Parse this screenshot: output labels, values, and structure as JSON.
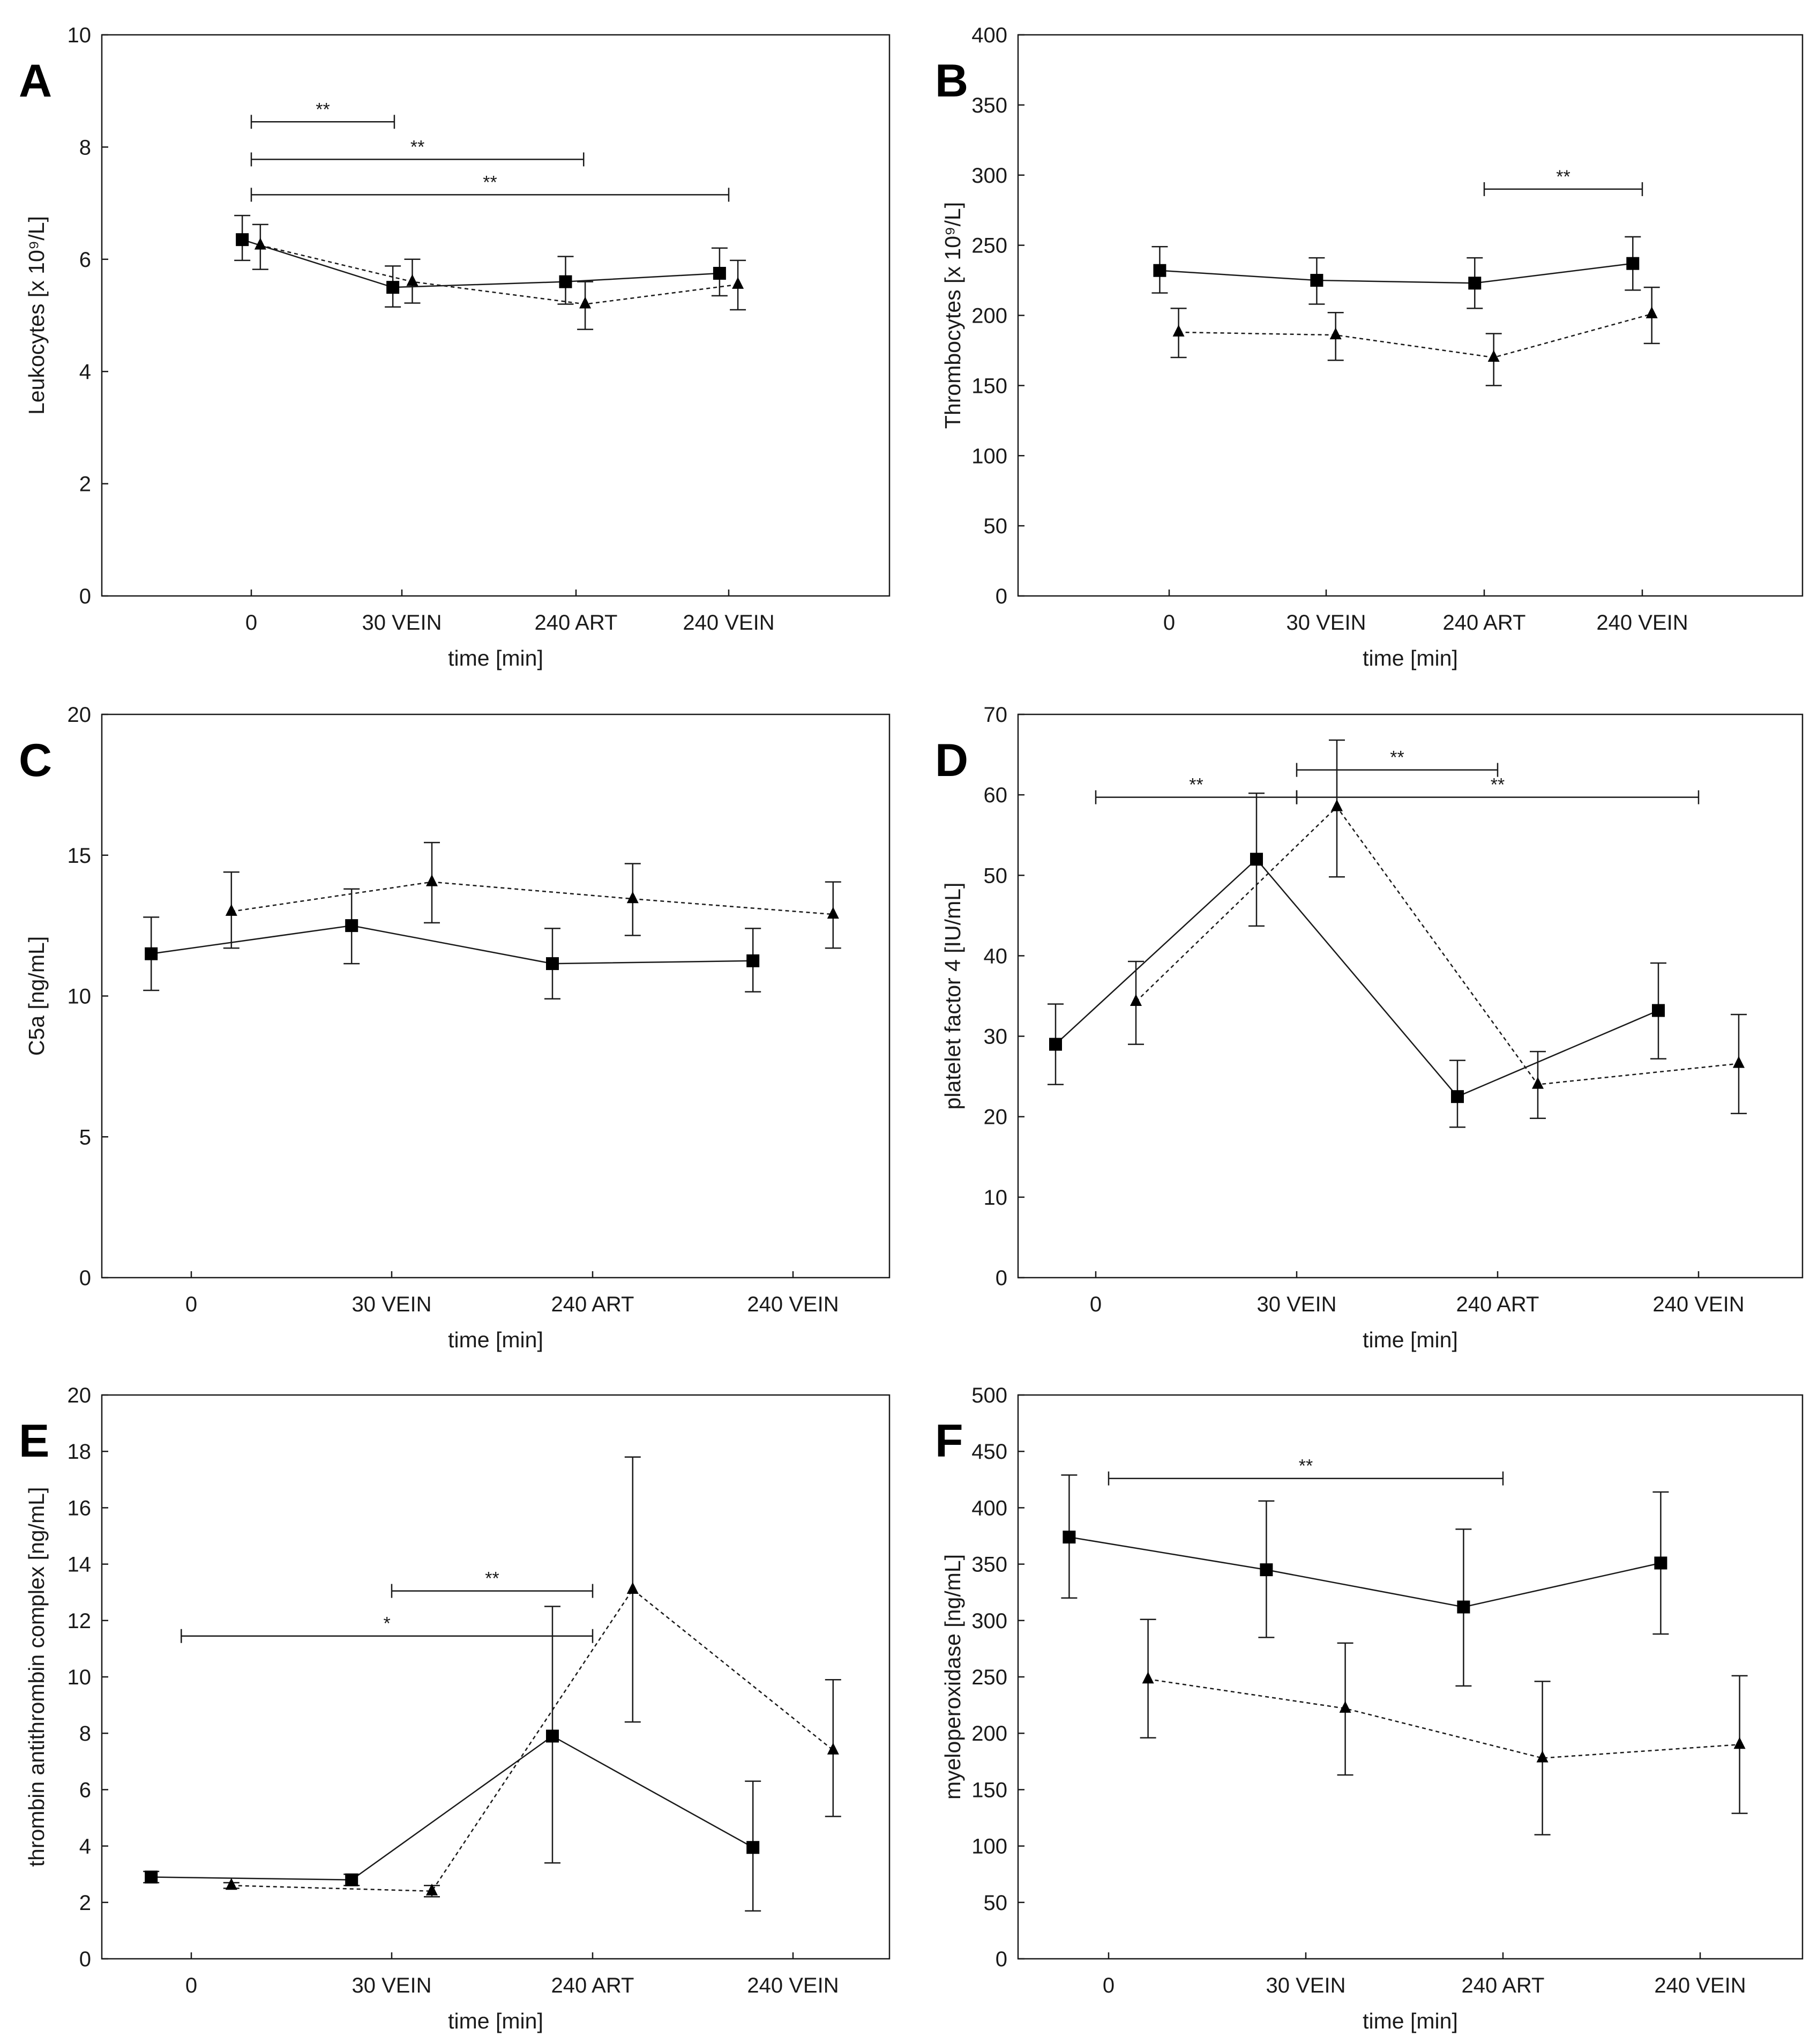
{
  "chart_data": [
    {
      "panel": "A",
      "type": "line",
      "xlabel": "time [min]",
      "ylabel": "Leukocytes [x 10⁹/L]",
      "categories": [
        "0",
        "30 VEIN",
        "240 ART",
        "240 VEIN"
      ],
      "ylim": [
        0,
        10
      ],
      "yticks": [
        "0",
        "2",
        "4",
        "6",
        "8",
        "10"
      ],
      "grid": false,
      "series": [
        {
          "name": "square-series",
          "style": "solid",
          "marker": "square",
          "x": [
            -0.06,
            0.94,
            1.94,
            2.94
          ],
          "values": [
            6.35,
            5.5,
            5.6,
            5.75
          ],
          "err_low": [
            5.98,
            5.15,
            5.2,
            5.35
          ],
          "err_high": [
            6.78,
            5.88,
            6.05,
            6.2
          ]
        },
        {
          "name": "triangle-series",
          "style": "dashed",
          "marker": "triangle",
          "x": [
            0.06,
            1.06,
            2.06,
            3.06
          ],
          "values": [
            6.25,
            5.6,
            5.2,
            5.55
          ],
          "err_low": [
            5.82,
            5.22,
            4.75,
            5.1
          ],
          "err_high": [
            6.62,
            6.0,
            5.6,
            5.98
          ]
        }
      ],
      "significance": [
        {
          "from": 0,
          "to": 0.95,
          "label": "**",
          "y": 8.45
        },
        {
          "from": 0,
          "to": 2.05,
          "label": "**",
          "y": 7.78
        },
        {
          "from": 0,
          "to": 3.0,
          "label": "**",
          "y": 7.15
        }
      ]
    },
    {
      "panel": "B",
      "type": "line",
      "xlabel": "time [min]",
      "ylabel": "Thrombocytes [x 10⁹/L]",
      "categories": [
        "0",
        "30 VEIN",
        "240 ART",
        "240 VEIN"
      ],
      "ylim": [
        0,
        400
      ],
      "yticks": [
        "0",
        "50",
        "100",
        "150",
        "200",
        "250",
        "300",
        "350",
        "400"
      ],
      "grid": false,
      "series": [
        {
          "name": "square-series",
          "style": "solid",
          "marker": "square",
          "x": [
            -0.06,
            0.94,
            1.94,
            2.94
          ],
          "values": [
            232,
            225,
            223,
            237
          ],
          "err_low": [
            216,
            208,
            205,
            218
          ],
          "err_high": [
            249,
            241,
            241,
            256
          ]
        },
        {
          "name": "triangle-series",
          "style": "dashed",
          "marker": "triangle",
          "x": [
            0.06,
            1.06,
            2.06,
            3.06
          ],
          "values": [
            188,
            186,
            170,
            201
          ],
          "err_low": [
            170,
            168,
            150,
            180
          ],
          "err_high": [
            205,
            202,
            187,
            220
          ]
        }
      ],
      "significance": [
        {
          "from": 2.0,
          "to": 3.0,
          "label": "**",
          "y": 290
        }
      ]
    },
    {
      "panel": "C",
      "type": "line",
      "xlabel": "time [min]",
      "ylabel": "C5a [ng/mL]",
      "categories": [
        "0",
        "30 VEIN",
        "240 ART",
        "240 VEIN"
      ],
      "ylim": [
        0,
        20
      ],
      "yticks": [
        "0",
        "5",
        "10",
        "15",
        "20"
      ],
      "grid": false,
      "series": [
        {
          "name": "square-series",
          "style": "solid",
          "marker": "square",
          "x": [
            -0.2,
            0.8,
            1.8,
            2.8
          ],
          "values": [
            11.5,
            12.5,
            11.15,
            11.25
          ],
          "err_low": [
            10.2,
            11.15,
            9.9,
            10.15
          ],
          "err_high": [
            12.8,
            13.8,
            12.4,
            12.4
          ]
        },
        {
          "name": "triangle-series",
          "style": "dashed",
          "marker": "triangle",
          "x": [
            0.2,
            1.2,
            2.2,
            3.2
          ],
          "values": [
            13.0,
            14.05,
            13.45,
            12.9
          ],
          "err_low": [
            11.7,
            12.6,
            12.15,
            11.7
          ],
          "err_high": [
            14.4,
            15.45,
            14.7,
            14.05
          ]
        }
      ],
      "significance": []
    },
    {
      "panel": "D",
      "type": "line",
      "xlabel": "time [min]",
      "ylabel": "platelet factor 4 [IU/mL]",
      "categories": [
        "0",
        "30 VEIN",
        "240 ART",
        "240 VEIN"
      ],
      "ylim": [
        0,
        70
      ],
      "yticks": [
        "0",
        "10",
        "20",
        "30",
        "40",
        "50",
        "60",
        "70"
      ],
      "grid": false,
      "series": [
        {
          "name": "square-series",
          "style": "solid",
          "marker": "square",
          "x": [
            -0.2,
            0.8,
            1.8,
            2.8
          ],
          "values": [
            29,
            52,
            22.5,
            33.2
          ],
          "err_low": [
            24,
            43.7,
            18.7,
            27.2
          ],
          "err_high": [
            34,
            60.2,
            27,
            39.1
          ]
        },
        {
          "name": "triangle-series",
          "style": "dashed",
          "marker": "triangle",
          "x": [
            0.2,
            1.2,
            2.2,
            3.2
          ],
          "values": [
            34.3,
            58.5,
            24,
            26.6
          ],
          "err_low": [
            29,
            49.8,
            19.8,
            20.4
          ],
          "err_high": [
            39.3,
            66.8,
            28.1,
            32.7
          ]
        }
      ],
      "significance": [
        {
          "from": 0,
          "to": 1.0,
          "label": "**",
          "y": 59.7
        },
        {
          "from": 1.0,
          "to": 2.0,
          "label": "**",
          "y": 63.1
        },
        {
          "from": 1.0,
          "to": 3.0,
          "label": "**",
          "y": 59.7
        }
      ]
    },
    {
      "panel": "E",
      "type": "line",
      "xlabel": "time [min]",
      "ylabel": "thrombin antithrombin complex [ng/mL]",
      "categories": [
        "0",
        "30 VEIN",
        "240 ART",
        "240 VEIN"
      ],
      "ylim": [
        0,
        20
      ],
      "yticks": [
        "0",
        "2",
        "4",
        "6",
        "8",
        "10",
        "12",
        "14",
        "16",
        "18",
        "20"
      ],
      "grid": false,
      "series": [
        {
          "name": "square-series",
          "style": "solid",
          "marker": "square",
          "x": [
            -0.2,
            0.8,
            1.8,
            2.8
          ],
          "values": [
            2.9,
            2.8,
            7.9,
            3.95
          ],
          "err_low": [
            2.7,
            2.6,
            3.4,
            1.7
          ],
          "err_high": [
            3.1,
            3.0,
            12.5,
            6.3
          ]
        },
        {
          "name": "triangle-series",
          "style": "dashed",
          "marker": "triangle",
          "x": [
            0.2,
            1.2,
            2.2,
            3.2
          ],
          "values": [
            2.6,
            2.4,
            13.1,
            7.4
          ],
          "err_low": [
            2.5,
            2.2,
            8.4,
            5.05
          ],
          "err_high": [
            2.7,
            2.6,
            17.8,
            9.9
          ]
        }
      ],
      "significance": [
        {
          "from": 1.0,
          "to": 2.0,
          "label": "**",
          "y": 13.05
        },
        {
          "from": -0.05,
          "to": 2.0,
          "label": "*",
          "y": 11.45
        }
      ]
    },
    {
      "panel": "F",
      "type": "line",
      "xlabel": "time [min]",
      "ylabel": "myeloperoxidase [ng/mL]",
      "categories": [
        "0",
        "30 VEIN",
        "240 ART",
        "240 VEIN"
      ],
      "ylim": [
        0,
        500
      ],
      "yticks": [
        "0",
        "50",
        "100",
        "150",
        "200",
        "250",
        "300",
        "350",
        "400",
        "450",
        "500"
      ],
      "grid": false,
      "series": [
        {
          "name": "square-series",
          "style": "solid",
          "marker": "square",
          "x": [
            -0.2,
            0.8,
            1.8,
            2.8
          ],
          "values": [
            374,
            345,
            312,
            351
          ],
          "err_low": [
            320,
            285,
            242,
            288
          ],
          "err_high": [
            429,
            406,
            381,
            414
          ]
        },
        {
          "name": "triangle-series",
          "style": "dashed",
          "marker": "triangle",
          "x": [
            0.2,
            1.2,
            2.2,
            3.2
          ],
          "values": [
            248,
            222,
            178,
            190
          ],
          "err_low": [
            196,
            163,
            110,
            129
          ],
          "err_high": [
            301,
            280,
            246,
            251
          ]
        }
      ],
      "significance": [
        {
          "from": 0,
          "to": 2.0,
          "label": "**",
          "y": 426
        }
      ]
    }
  ]
}
